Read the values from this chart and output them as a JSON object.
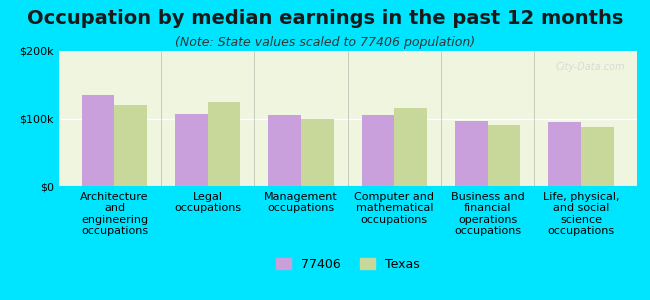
{
  "title": "Occupation by median earnings in the past 12 months",
  "subtitle": "(Note: State values scaled to 77406 population)",
  "categories": [
    "Architecture\nand\nengineering\noccupations",
    "Legal\noccupations",
    "Management\noccupations",
    "Computer and\nmathematical\noccupations",
    "Business and\nfinancial\noperations\noccupations",
    "Life, physical,\nand social\nscience\noccupations"
  ],
  "values_77406": [
    135000,
    107000,
    105000,
    105000,
    97000,
    95000
  ],
  "values_texas": [
    120000,
    125000,
    100000,
    115000,
    90000,
    88000
  ],
  "color_77406": "#c9a0dc",
  "color_texas": "#c8d89a",
  "background_outer": "#00e5ff",
  "background_plot": "#f0f5e0",
  "ylim": [
    0,
    200000
  ],
  "yticks": [
    0,
    100000,
    200000
  ],
  "ytick_labels": [
    "$0",
    "$100k",
    "$200k"
  ],
  "legend_label_1": "77406",
  "legend_label_2": "Texas",
  "bar_width": 0.35,
  "title_fontsize": 14,
  "subtitle_fontsize": 9,
  "tick_fontsize": 8,
  "legend_fontsize": 9
}
